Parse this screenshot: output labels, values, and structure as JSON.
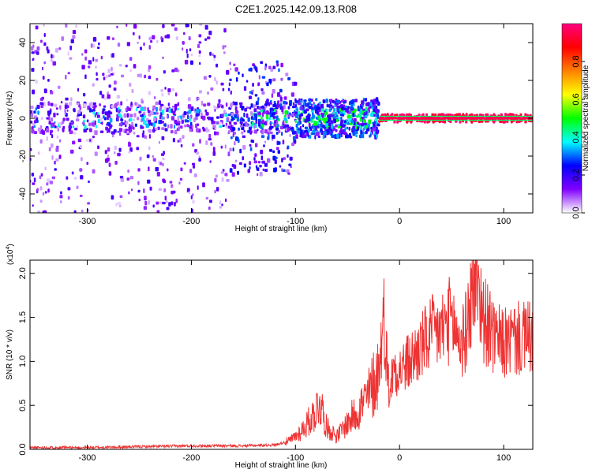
{
  "title": "C2E1.2025.142.09.13.R08",
  "chart_data": [
    {
      "type": "heatmap",
      "xlabel": "Height of straight line (km)",
      "ylabel": "Frequency (Hz)",
      "xlim": [
        -355,
        128
      ],
      "ylim": [
        -50,
        50
      ],
      "xticks": [
        -300,
        -200,
        -100,
        0,
        100
      ],
      "yticks": [
        -40,
        -20,
        0,
        20,
        40
      ],
      "colorbar": {
        "label": "Normalized spectral amplitude",
        "range": [
          0,
          1
        ],
        "ticks": [
          "0.0",
          "0.2",
          "0.4",
          "0.6",
          "0.8"
        ],
        "colormap": [
          "#ffffff",
          "#8000ff",
          "#0000ff",
          "#00ffff",
          "#00ff00",
          "#ffff00",
          "#ff8000",
          "#ff0000",
          "#ff0080"
        ]
      },
      "bands": [
        {
          "x": [
            -355,
            -165
          ],
          "freq_center": 0,
          "freq_halfwidth": 50,
          "amplitude": [
            0.02,
            0.2
          ]
        },
        {
          "x": [
            -165,
            -100
          ],
          "freq_center": 0,
          "freq_halfwidth": 30,
          "amplitude": [
            0.05,
            0.3
          ]
        },
        {
          "x": [
            -100,
            -20
          ],
          "freq_center": 0,
          "freq_halfwidth": 10,
          "amplitude": [
            0.1,
            0.35
          ]
        },
        {
          "x": [
            -20,
            128
          ],
          "freq_center": 0,
          "freq_halfwidth": 2,
          "amplitude": [
            0.9,
            1.0
          ]
        }
      ]
    },
    {
      "type": "line",
      "xlabel": "Height of straight line (km)",
      "ylabel": "SNR (10 * v/v)",
      "scale_label": "(x10",
      "scale_exp": "4",
      "scale_close": ")",
      "xlim": [
        -355,
        128
      ],
      "ylim": [
        0,
        2.15
      ],
      "xticks": [
        -300,
        -200,
        -100,
        0,
        100
      ],
      "yticks": [
        "0.0",
        "0.5",
        "1.0",
        "1.5",
        "2.0"
      ],
      "series": [
        {
          "color": "#ee3333",
          "x": [
            -355,
            -300,
            -250,
            -200,
            -170,
            -150,
            -120,
            -105,
            -95,
            -85,
            -80,
            -77,
            -73,
            -70,
            -60,
            -50,
            -40,
            -30,
            -20,
            -15,
            -10,
            -5,
            0,
            10,
            20,
            30,
            40,
            50,
            55,
            60,
            65,
            70,
            75,
            80,
            85,
            90,
            100,
            110,
            120,
            128
          ],
          "y": [
            0.02,
            0.02,
            0.03,
            0.04,
            0.04,
            0.04,
            0.05,
            0.1,
            0.2,
            0.35,
            0.45,
            0.55,
            0.4,
            0.25,
            0.15,
            0.3,
            0.45,
            0.6,
            0.9,
            1.5,
            0.65,
            0.95,
            0.9,
            1.0,
            1.15,
            1.3,
            1.35,
            1.5,
            1.3,
            1.2,
            1.4,
            1.85,
            2.0,
            1.5,
            1.4,
            1.25,
            1.2,
            1.25,
            1.25,
            1.28
          ]
        }
      ]
    }
  ]
}
